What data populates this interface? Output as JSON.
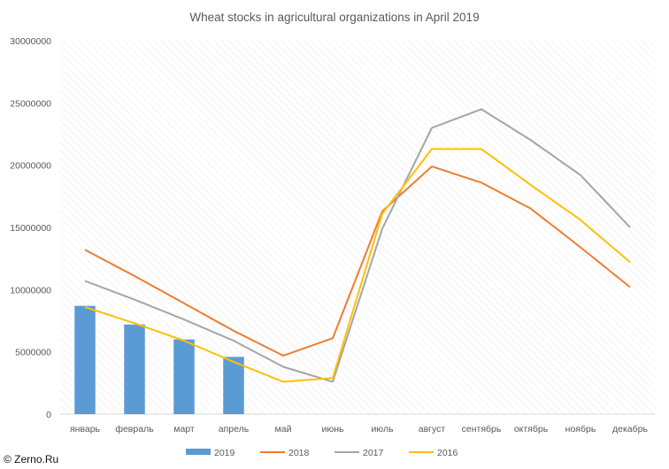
{
  "chart_data": {
    "type": "bar+line",
    "title": "Wheat stocks in agricultural organizations in April 2019",
    "categories": [
      "январь",
      "февраль",
      "март",
      "апрель",
      "май",
      "июнь",
      "июль",
      "август",
      "сентябрь",
      "октябрь",
      "ноябрь",
      "декабрь"
    ],
    "y_ticks": [
      "0",
      "5000000",
      "10000000",
      "15000000",
      "20000000",
      "25000000",
      "30000000"
    ],
    "ylim": [
      0,
      30000000
    ],
    "grid": "diagonal-hatch",
    "legend_position": "bottom",
    "series": [
      {
        "name": "2019",
        "type": "bar",
        "color": "#5B9BD5",
        "values": [
          8700000,
          7200000,
          6000000,
          4600000,
          null,
          null,
          null,
          null,
          null,
          null,
          null,
          null
        ]
      },
      {
        "name": "2018",
        "type": "line",
        "color": "#ED7D31",
        "values": [
          13200000,
          11100000,
          8900000,
          6700000,
          4700000,
          6100000,
          16300000,
          19900000,
          18600000,
          16500000,
          13400000,
          10200000
        ]
      },
      {
        "name": "2017",
        "type": "line",
        "color": "#A5A5A5",
        "values": [
          10700000,
          9200000,
          7600000,
          5900000,
          3800000,
          2600000,
          14900000,
          23000000,
          24500000,
          22000000,
          19200000,
          15000000
        ]
      },
      {
        "name": "2016",
        "type": "line",
        "color": "#FFC000",
        "values": [
          8600000,
          7300000,
          5900000,
          4200000,
          2600000,
          2900000,
          16100000,
          21300000,
          21300000,
          18400000,
          15600000,
          12200000
        ]
      }
    ]
  },
  "watermark": "© Zerno.Ru"
}
